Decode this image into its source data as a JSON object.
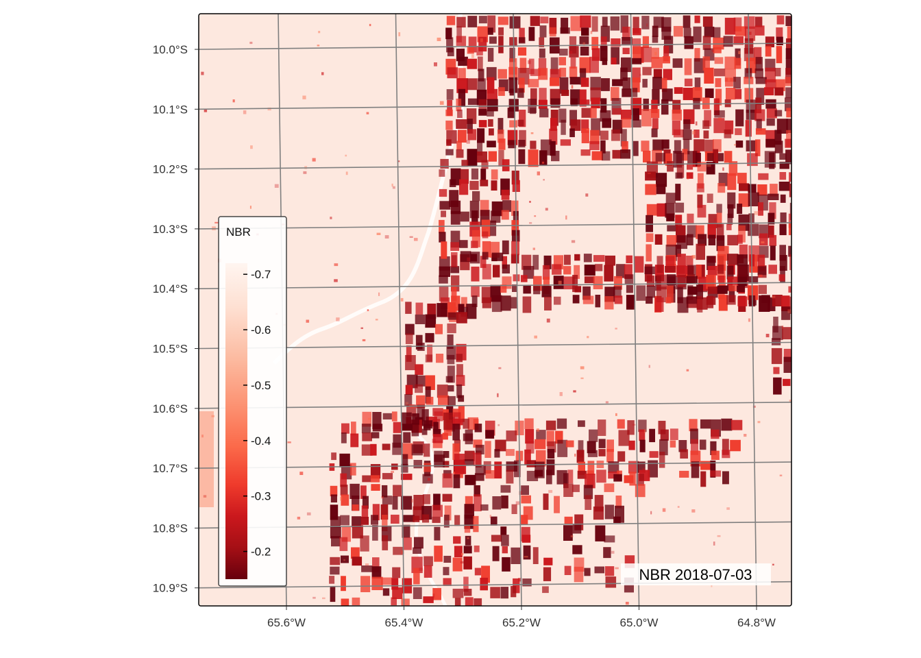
{
  "map": {
    "layer": "NBR",
    "panel_label": "NBR 2018-07-03",
    "lat_labels": [
      "10.0°S",
      "10.1°S",
      "10.2°S",
      "10.3°S",
      "10.4°S",
      "10.5°S",
      "10.6°S",
      "10.7°S",
      "10.8°S",
      "10.9°S"
    ],
    "lon_labels": [
      "65.6°W",
      "65.4°W",
      "65.2°W",
      "65.0°W",
      "64.8°W"
    ],
    "graticule_color": "#7f7f7f",
    "background_color": "#fde8df"
  },
  "legend": {
    "title": "NBR",
    "ticks": [
      {
        "value": -0.7,
        "label": "-0.7"
      },
      {
        "value": -0.6,
        "label": "-0.6"
      },
      {
        "value": -0.5,
        "label": "-0.5"
      },
      {
        "value": -0.4,
        "label": "-0.4"
      },
      {
        "value": -0.3,
        "label": "-0.3"
      },
      {
        "value": -0.2,
        "label": "-0.2"
      }
    ],
    "range": [
      -0.72,
      -0.15
    ],
    "palette": [
      "#fff5f0",
      "#fee0d2",
      "#fcbba1",
      "#fc9272",
      "#fb6a4a",
      "#ef3b2c",
      "#cb181d",
      "#a50f15",
      "#67000d"
    ]
  }
}
